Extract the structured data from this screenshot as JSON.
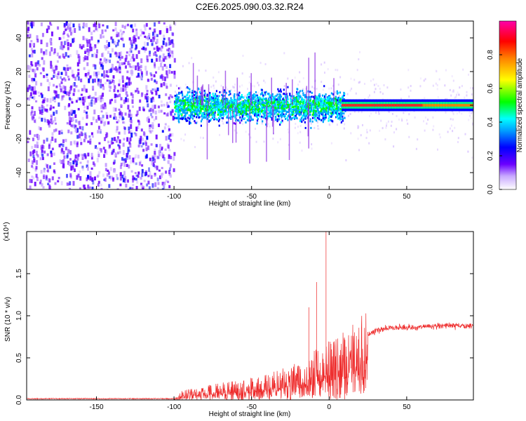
{
  "title": "C2E6.2025.090.03.32.R24",
  "chart_data": [
    {
      "type": "heatmap",
      "xlabel": "Height of straight line (km)",
      "ylabel": "Frequency (Hz)",
      "xlim": [
        -195,
        93
      ],
      "ylim": [
        -50,
        50
      ],
      "x_ticks": [
        "-150",
        "-100",
        "-50",
        "0",
        "50"
      ],
      "y_ticks": [
        "-40",
        "-20",
        "0",
        "20",
        "40"
      ],
      "colorbar": {
        "label": "Normalized spectral amplitude",
        "range": [
          0,
          1
        ],
        "ticks": [
          "0.0",
          "0.2",
          "0.4",
          "0.6",
          "0.8"
        ],
        "colors": [
          "#ffffff",
          "#8a2be2",
          "#0000ff",
          "#00ffff",
          "#00ff00",
          "#ffff00",
          "#ff8000",
          "#ff0000",
          "#ff00ff"
        ]
      },
      "regions": [
        {
          "x_range": [
            -195,
            -100
          ],
          "description_level": 0.08,
          "spread_hz": 50
        },
        {
          "x_range": [
            -100,
            10
          ],
          "center_hz": 0,
          "spread_hz": 12,
          "level": 0.2
        },
        {
          "x_range": [
            10,
            93
          ],
          "center_hz": 0,
          "spread_hz": 3,
          "level": 0.85
        }
      ]
    },
    {
      "type": "line",
      "xlabel": "Height of straight line (km)",
      "ylabel": "SNR (10 * v/v)",
      "y_multiplier": "(x10⁴)",
      "xlim": [
        -195,
        93
      ],
      "ylim": [
        0,
        2.0
      ],
      "x_ticks": [
        "-150",
        "-100",
        "-50",
        "0",
        "50"
      ],
      "y_ticks": [
        "0.0",
        "0.5",
        "1.0",
        "1.5"
      ],
      "series_color": "#ee2a2a",
      "envelope": {
        "x": [
          -195,
          -100,
          -95,
          -80,
          -60,
          -40,
          -20,
          -10,
          0,
          10,
          20,
          30,
          40,
          50,
          60,
          70,
          80,
          93
        ],
        "y": [
          0.01,
          0.01,
          0.08,
          0.12,
          0.17,
          0.22,
          0.32,
          0.42,
          0.5,
          0.6,
          0.72,
          0.82,
          0.86,
          0.86,
          0.87,
          0.88,
          0.88,
          0.88
        ]
      },
      "peaks": [
        {
          "x": -2,
          "y": 2.0
        },
        {
          "x": -8,
          "y": 1.4
        },
        {
          "x": -13,
          "y": 1.1
        }
      ]
    }
  ]
}
